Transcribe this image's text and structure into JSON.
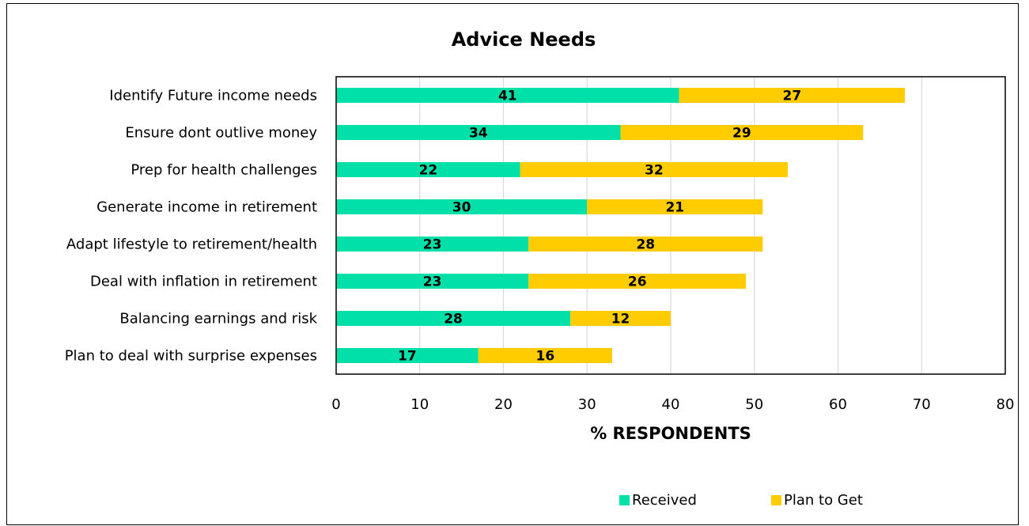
{
  "chart_data": {
    "type": "bar",
    "orientation": "horizontal",
    "stacked": true,
    "title": "Advice Needs",
    "xlabel": "% RESPONDENTS",
    "ylabel": "",
    "xlim": [
      0,
      80
    ],
    "xticks": [
      0,
      10,
      20,
      30,
      40,
      50,
      60,
      70,
      80
    ],
    "grid": true,
    "legend_position": "bottom-right",
    "categories": [
      "Identify Future income needs",
      "Ensure dont outlive money",
      "Prep for health challenges",
      "Generate income in retirement",
      "Adapt lifestyle to retirement/health",
      "Deal with inflation in retirement",
      "Balancing earnings and risk",
      "Plan to deal with surprise expenses"
    ],
    "series": [
      {
        "name": "Received",
        "color": "#00E0A8",
        "values": [
          41,
          34,
          22,
          30,
          23,
          23,
          28,
          17
        ]
      },
      {
        "name": "Plan to Get",
        "color": "#FFCC00",
        "values": [
          27,
          29,
          32,
          21,
          28,
          26,
          12,
          16
        ]
      }
    ]
  }
}
